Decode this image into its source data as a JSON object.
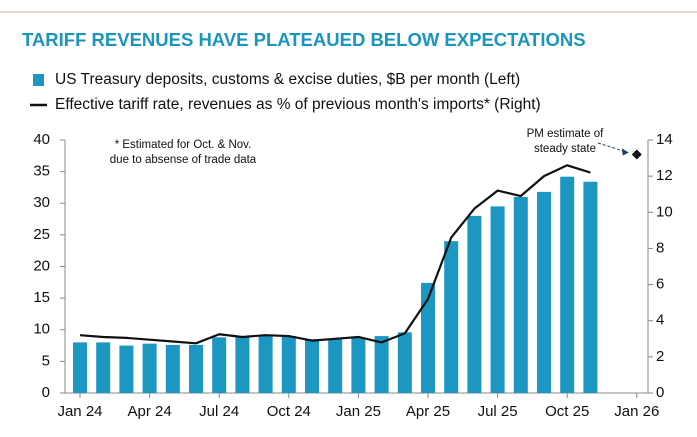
{
  "chart_data": {
    "type": "bar-line",
    "title": "TARIFF REVENUES HAVE PLATEAUED BELOW EXPECTATIONS",
    "categories": [
      "Jan 24",
      null,
      null,
      "Apr 24",
      null,
      null,
      "Jul 24",
      null,
      null,
      "Oct 24",
      null,
      null,
      "Jan 25",
      null,
      null,
      "Apr 25",
      null,
      null,
      "Jul 25",
      null,
      null,
      "Oct 25",
      null,
      null,
      "Jan 26"
    ],
    "series": [
      {
        "name": "US Treasury deposits, customs & excise duties, $B per month (Left)",
        "color": "#1b97c2",
        "type": "bar",
        "values": [
          8,
          8,
          7.5,
          7.8,
          7.6,
          7.6,
          8.8,
          8.9,
          9.1,
          9,
          8.5,
          8.5,
          8.7,
          9,
          9.6,
          17.4,
          24,
          28,
          29.5,
          31,
          31.8,
          34.2,
          33.4,
          null,
          null
        ]
      },
      {
        "name": "Effective tariff rate, revenues as % of previous month's imports* (Right)",
        "color": "#111111",
        "type": "line",
        "axis": "y2",
        "values": [
          3.2,
          3.1,
          3.05,
          2.95,
          2.85,
          2.75,
          3.25,
          3.1,
          3.2,
          3.15,
          2.9,
          3.0,
          3.1,
          2.8,
          3.3,
          5.2,
          8.6,
          10.2,
          11.2,
          10.9,
          12.0,
          12.6,
          12.2,
          null,
          null
        ]
      }
    ],
    "estimate": {
      "lines": [
        "PM estimate of",
        "steady state"
      ],
      "axis": "y2",
      "values": [
        null,
        null,
        null,
        null,
        null,
        null,
        null,
        null,
        null,
        null,
        null,
        null,
        null,
        null,
        null,
        null,
        null,
        null,
        null,
        null,
        null,
        null,
        null,
        null,
        13.2
      ]
    },
    "note": [
      "* Estimated for Oct. & Nov.",
      "due to absense of trade data"
    ],
    "ylim": [
      0,
      40
    ],
    "yticks": [
      0,
      5,
      10,
      15,
      20,
      25,
      30,
      35,
      40
    ],
    "y2lim": [
      0,
      14
    ],
    "y2ticks": [
      0,
      2,
      4,
      6,
      8,
      10,
      12,
      14
    ],
    "grid": false
  }
}
